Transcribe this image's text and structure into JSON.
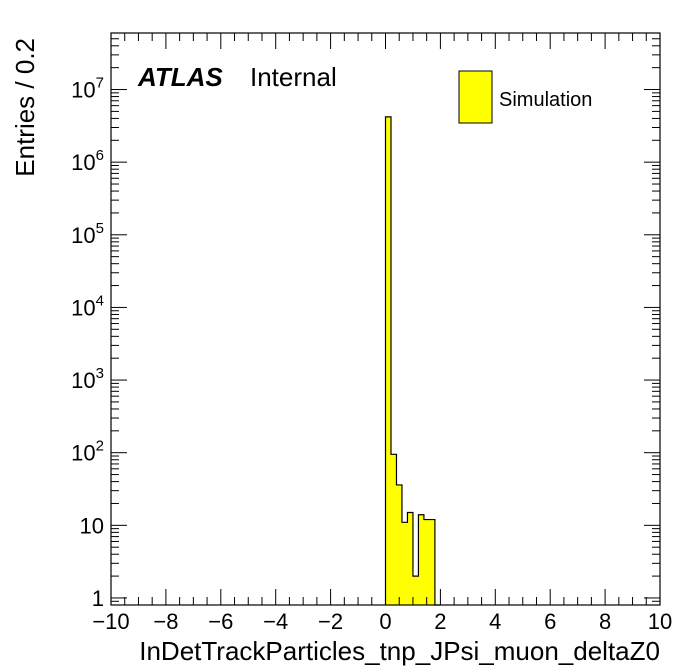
{
  "chart_data": {
    "type": "bar",
    "histogram": true,
    "xlabel": "InDetTrackParticles_tnp_JPsi_muon_deltaZ0",
    "ylabel": "Entries / 0.2",
    "xlim": [
      -10,
      10
    ],
    "ylim": [
      0.8,
      60000000
    ],
    "log_y": true,
    "x_ticks": [
      -10,
      -8,
      -6,
      -4,
      -2,
      0,
      2,
      4,
      6,
      8,
      10
    ],
    "x_tick_labels": [
      "−10",
      "−8",
      "−6",
      "−4",
      "−2",
      "0",
      "2",
      "4",
      "6",
      "8",
      "10"
    ],
    "y_ticks": [
      {
        "value": 1,
        "base": "1",
        "exp": ""
      },
      {
        "value": 10,
        "base": "10",
        "exp": ""
      },
      {
        "value": 100,
        "base": "10",
        "exp": "2"
      },
      {
        "value": 1000,
        "base": "10",
        "exp": "3"
      },
      {
        "value": 10000,
        "base": "10",
        "exp": "4"
      },
      {
        "value": 100000,
        "base": "10",
        "exp": "5"
      },
      {
        "value": 1000000,
        "base": "10",
        "exp": "6"
      },
      {
        "value": 10000000,
        "base": "10",
        "exp": "7"
      }
    ],
    "bin_width": 0.2,
    "bin_low_edges": [
      0.0,
      0.2,
      0.4,
      0.6,
      0.8,
      1.0,
      1.2,
      1.4,
      1.6,
      1.8
    ],
    "values": [
      4200000,
      95,
      36,
      11,
      15,
      2,
      14,
      12,
      12,
      0
    ],
    "series": [
      {
        "name": "Simulation",
        "color": "#ffff00"
      }
    ],
    "fill_color": "#ffff00",
    "legend_position": "top-right",
    "grid": false
  },
  "labels": {
    "atlas": "ATLAS",
    "internal": "Internal",
    "legend_entry": "Simulation"
  }
}
